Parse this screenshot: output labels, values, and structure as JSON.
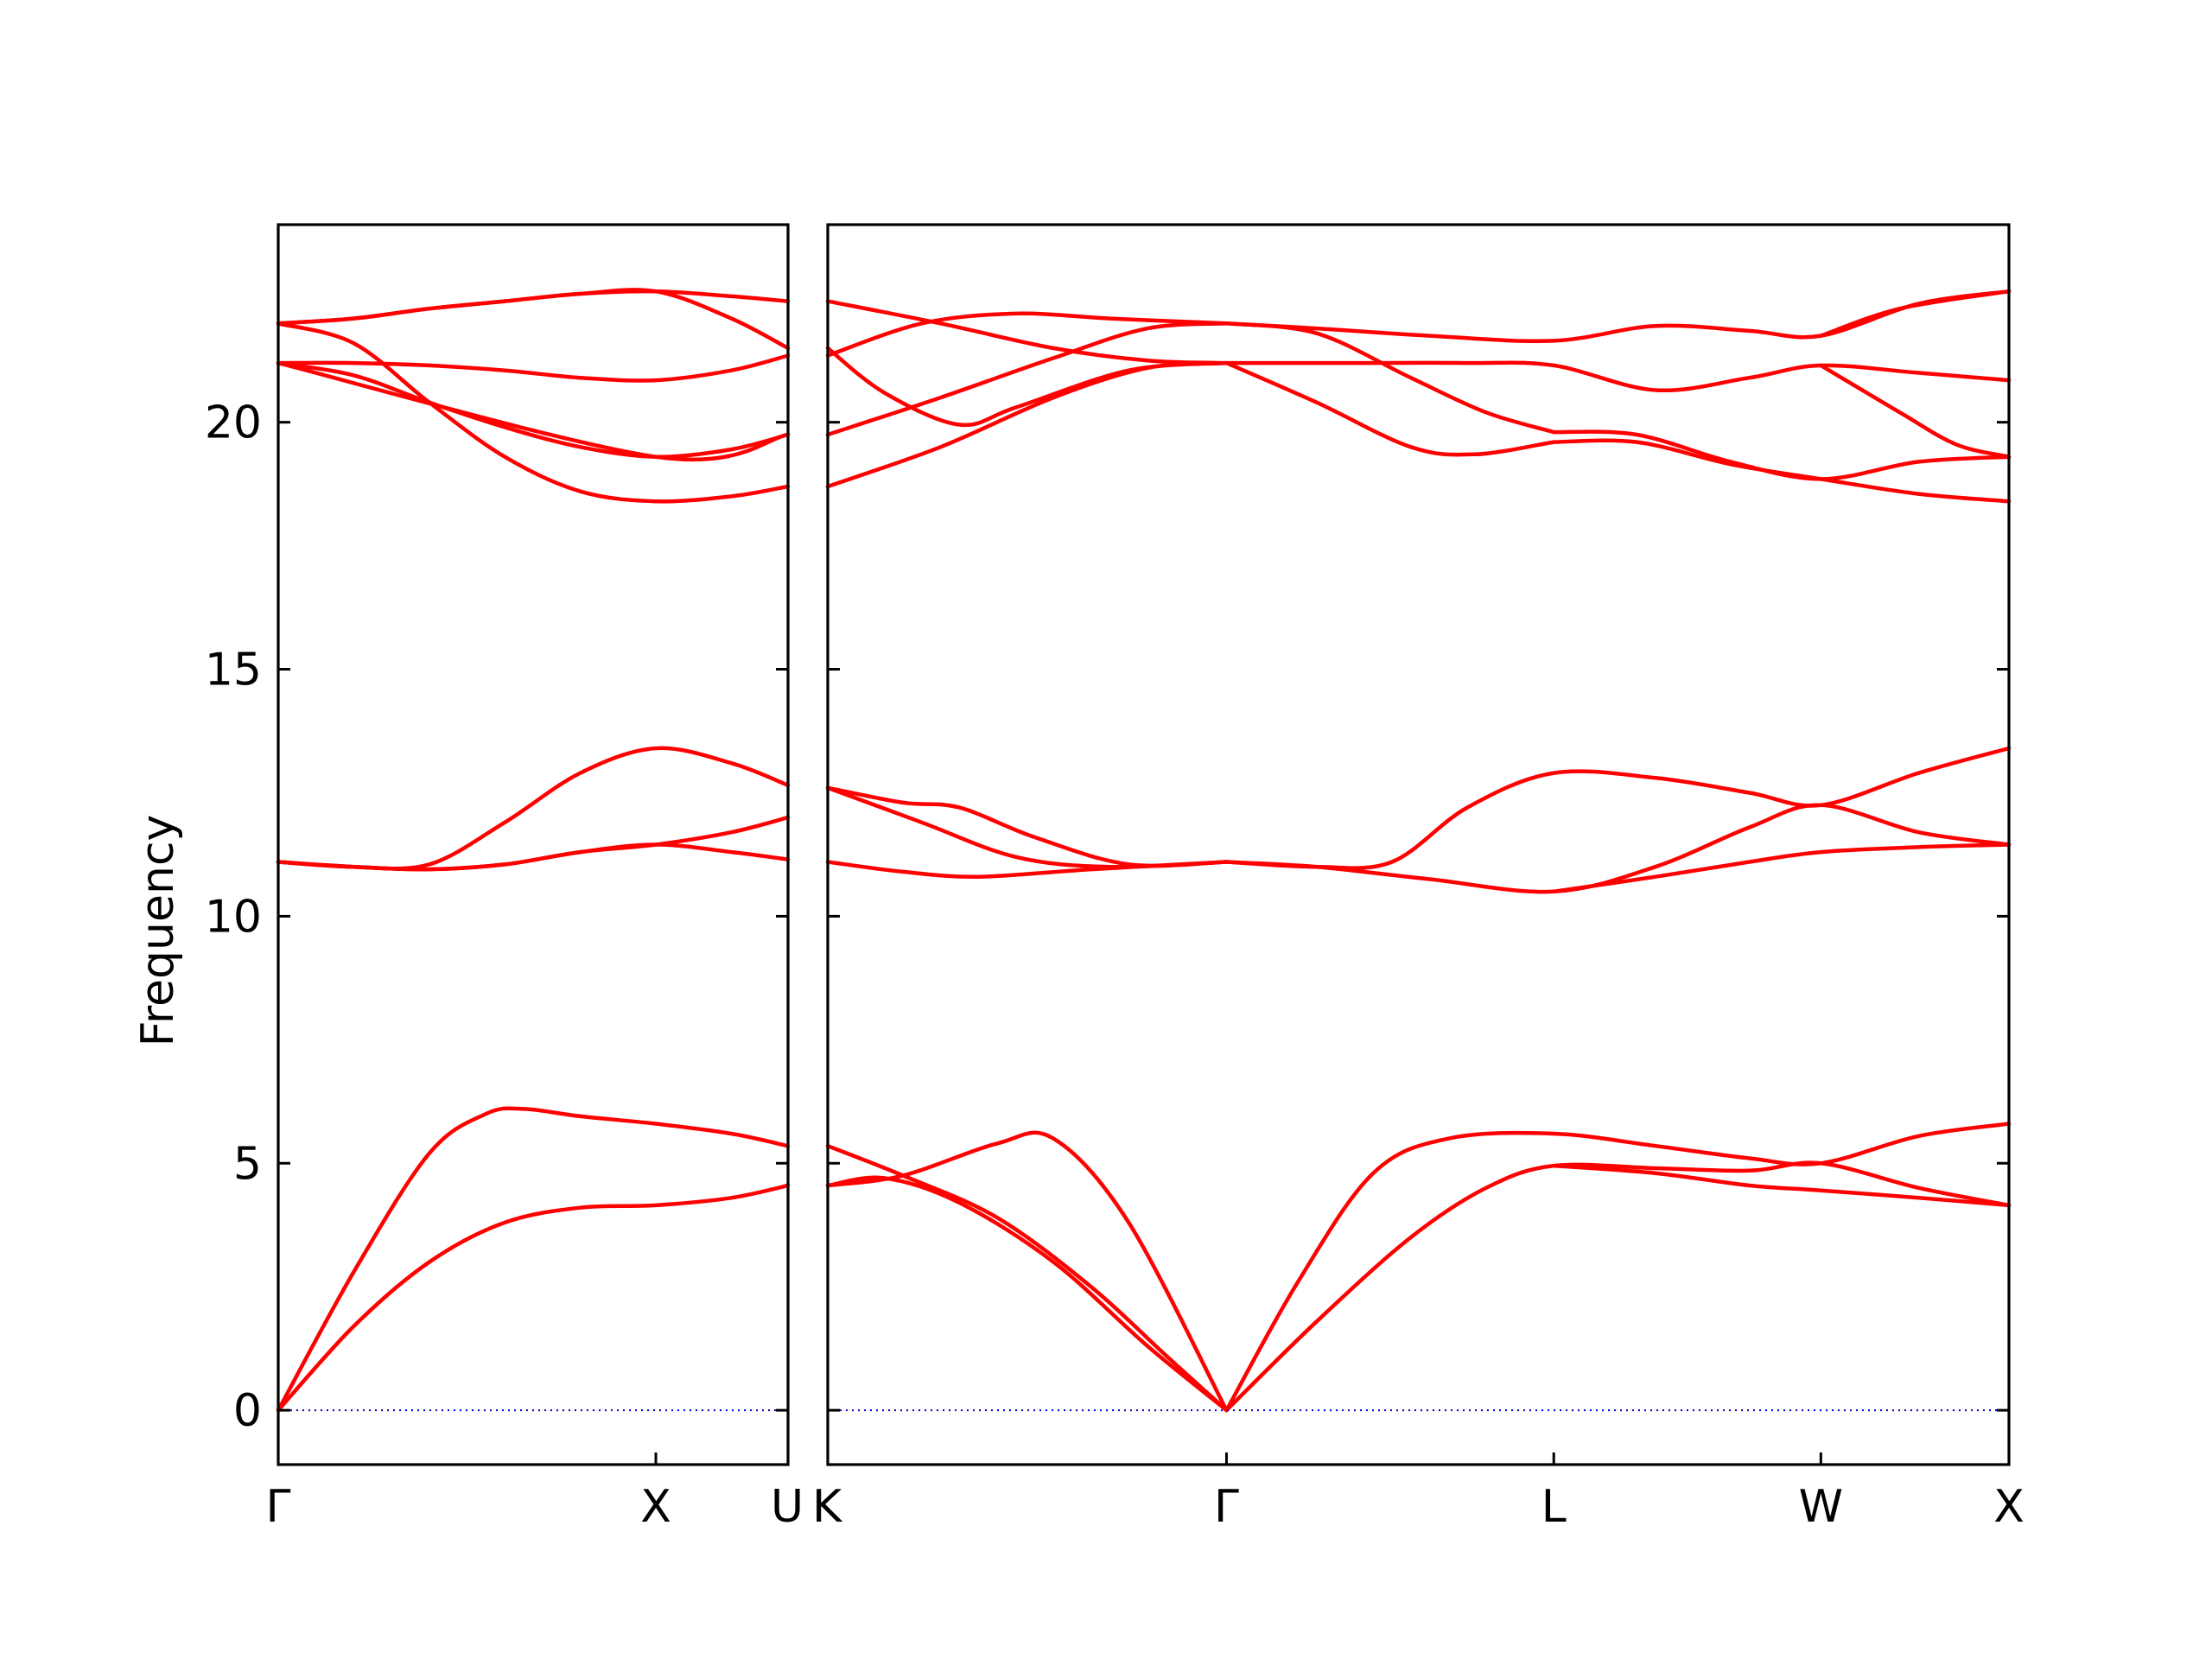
{
  "chart_data": {
    "type": "line",
    "title": "",
    "ylabel": "Frequency",
    "ylim": [
      -1.1,
      24
    ],
    "yticks": [
      0,
      5,
      10,
      15,
      20
    ],
    "grid": false,
    "legend": "none",
    "band_color": "#ff0000",
    "zero_line_color": "#0000cc",
    "panels": [
      {
        "name": "Γ-X-U",
        "xlim": [
          0,
          1.35
        ],
        "xtick_positions": [
          0,
          1.0,
          1.35
        ],
        "xtick_labels": [
          "Γ",
          "X",
          "U"
        ],
        "series": [
          {
            "x": [
              0,
              0.2,
              0.4,
              0.55,
              0.65,
              0.8,
              1.0,
              1.2,
              1.35
            ],
            "y": [
              0,
              2.8,
              5.2,
              6.0,
              6.1,
              5.95,
              5.8,
              5.6,
              5.35
            ]
          },
          {
            "x": [
              0,
              0.2,
              0.4,
              0.6,
              0.8,
              1.0,
              1.2,
              1.35
            ],
            "y": [
              0,
              1.7,
              3.0,
              3.8,
              4.1,
              4.15,
              4.3,
              4.55
            ]
          },
          {
            "x": [
              0,
              0.2,
              0.4,
              0.6,
              0.8,
              1.0,
              1.2,
              1.35
            ],
            "y": [
              11.1,
              11.0,
              11.05,
              11.9,
              12.9,
              13.4,
              13.1,
              12.65
            ]
          },
          {
            "x": [
              0,
              0.2,
              0.4,
              0.6,
              0.8,
              1.0,
              1.2,
              1.35
            ],
            "y": [
              11.1,
              11.0,
              10.95,
              11.05,
              11.3,
              11.45,
              11.3,
              11.15
            ]
          },
          {
            "x": [
              0,
              0.2,
              0.4,
              0.6,
              0.8,
              1.0,
              1.2,
              1.35
            ],
            "y": [
              11.1,
              11.0,
              10.95,
              11.05,
              11.3,
              11.45,
              11.7,
              12.0
            ]
          },
          {
            "x": [
              0,
              0.2,
              0.4,
              0.6,
              0.8,
              1.0,
              1.2,
              1.35
            ],
            "y": [
              21.2,
              21.2,
              21.15,
              21.05,
              20.9,
              20.85,
              21.05,
              21.35
            ]
          },
          {
            "x": [
              0,
              0.2,
              0.4,
              0.6,
              0.8,
              1.0,
              1.2,
              1.35
            ],
            "y": [
              21.2,
              20.95,
              20.4,
              19.9,
              19.5,
              19.3,
              19.45,
              19.75
            ]
          },
          {
            "x": [
              0,
              0.2,
              0.4,
              0.6,
              0.8,
              1.0,
              1.2,
              1.35
            ],
            "y": [
              22.0,
              21.6,
              20.4,
              19.3,
              18.6,
              18.4,
              18.5,
              18.7
            ]
          },
          {
            "x": [
              0,
              0.2,
              0.4,
              0.6,
              0.8,
              1.0,
              1.2,
              1.35
            ],
            "y": [
              22.0,
              22.1,
              22.3,
              22.45,
              22.6,
              22.65,
              22.55,
              22.45
            ]
          },
          {
            "x": [
              0,
              0.2,
              0.4,
              0.6,
              0.8,
              1.0,
              1.2,
              1.35
            ],
            "y": [
              22.0,
              22.1,
              22.3,
              22.45,
              22.6,
              22.65,
              22.1,
              21.5
            ]
          },
          {
            "x": [
              0,
              1.0,
              1.35
            ],
            "y": [
              21.2,
              19.3,
              19.75
            ]
          }
        ]
      },
      {
        "name": "K-Γ-L-W-X",
        "xlim": [
          0,
          3.14
        ],
        "xtick_positions": [
          0,
          1.06,
          1.93,
          2.64,
          3.14
        ],
        "xtick_labels": [
          "K",
          "Γ",
          "L",
          "W",
          "X"
        ],
        "series": [
          {
            "x": [
              0,
              0.2,
              0.45,
              0.6,
              0.8,
              1.06
            ],
            "y": [
              4.55,
              4.75,
              5.4,
              5.5,
              3.8,
              0
            ]
          },
          {
            "x": [
              0,
              0.2,
              0.45,
              0.7,
              0.9,
              1.06
            ],
            "y": [
              5.35,
              4.75,
              3.9,
              2.5,
              1.1,
              0
            ]
          },
          {
            "x": [
              0,
              0.15,
              0.35,
              0.6,
              0.85,
              1.06
            ],
            "y": [
              4.55,
              4.7,
              4.2,
              3.0,
              1.3,
              0
            ]
          },
          {
            "x": [
              1.06,
              1.25,
              1.45,
              1.65,
              1.93,
              2.2,
              2.45,
              2.64,
              2.9,
              3.14
            ],
            "y": [
              0,
              2.6,
              4.8,
              5.5,
              5.6,
              5.35,
              5.1,
              5.0,
              5.55,
              5.8
            ]
          },
          {
            "x": [
              1.06,
              1.3,
              1.55,
              1.75,
              1.93,
              2.2,
              2.45,
              2.64,
              2.9,
              3.14
            ],
            "y": [
              0,
              1.8,
              3.5,
              4.5,
              4.95,
              4.9,
              4.85,
              5.0,
              4.5,
              4.15
            ]
          },
          {
            "x": [
              1.93,
              2.2,
              2.45,
              2.64,
              2.9,
              3.14
            ],
            "y": [
              4.95,
              4.8,
              4.55,
              4.45,
              4.3,
              4.15
            ]
          },
          {
            "x": [
              0,
              0.2,
              0.35,
              0.55,
              0.8,
              1.06
            ],
            "y": [
              12.6,
              12.3,
              12.2,
              11.6,
              11.05,
              11.1
            ]
          },
          {
            "x": [
              0,
              0.25,
              0.5,
              0.75,
              1.06
            ],
            "y": [
              12.6,
              11.9,
              11.2,
              11.0,
              11.1
            ]
          },
          {
            "x": [
              0,
              0.2,
              0.4,
              0.7,
              1.06
            ],
            "y": [
              11.1,
              10.9,
              10.8,
              10.95,
              11.1
            ]
          },
          {
            "x": [
              1.06,
              1.3,
              1.5,
              1.7,
              1.93,
              2.2,
              2.45,
              2.64,
              2.9,
              3.14
            ],
            "y": [
              11.1,
              11.0,
              11.1,
              12.2,
              12.9,
              12.8,
              12.5,
              12.25,
              12.9,
              13.4
            ]
          },
          {
            "x": [
              1.06,
              1.3,
              1.6,
              1.93,
              2.2,
              2.45,
              2.64,
              2.9,
              3.14
            ],
            "y": [
              11.1,
              11.0,
              10.75,
              10.5,
              11.0,
              11.8,
              12.25,
              11.7,
              11.45
            ]
          },
          {
            "x": [
              1.93,
              2.2,
              2.45,
              2.64,
              2.9,
              3.14
            ],
            "y": [
              10.5,
              10.8,
              11.1,
              11.3,
              11.4,
              11.45
            ]
          },
          {
            "x": [
              0,
              0.3,
              0.6,
              0.85,
              1.06
            ],
            "y": [
              18.7,
              19.5,
              20.5,
              21.1,
              21.2
            ]
          },
          {
            "x": [
              0,
              0.3,
              0.6,
              0.85,
              1.06
            ],
            "y": [
              19.75,
              20.5,
              21.3,
              21.9,
              22.0
            ]
          },
          {
            "x": [
              0,
              0.15,
              0.35,
              0.5,
              0.8,
              1.06
            ],
            "y": [
              21.5,
              20.6,
              19.95,
              20.3,
              21.05,
              21.2
            ]
          },
          {
            "x": [
              0,
              0.25,
              0.5,
              0.75,
              1.06
            ],
            "y": [
              21.35,
              22.0,
              22.2,
              22.1,
              22.0
            ]
          },
          {
            "x": [
              0,
              0.3,
              0.6,
              0.85,
              1.06
            ],
            "y": [
              22.45,
              22.0,
              21.5,
              21.25,
              21.2
            ]
          },
          {
            "x": [
              1.06,
              1.3,
              1.6,
              1.93,
              2.2,
              2.45,
              2.64,
              2.9,
              3.14
            ],
            "y": [
              22.0,
              21.9,
              21.75,
              21.65,
              21.95,
              21.85,
              21.75,
              22.4,
              22.65
            ]
          },
          {
            "x": [
              1.06,
              1.4,
              1.7,
              1.93,
              2.2,
              2.45,
              2.64,
              2.9,
              3.14
            ],
            "y": [
              21.2,
              21.2,
              21.2,
              21.15,
              20.65,
              20.9,
              21.15,
              21.0,
              20.85
            ]
          },
          {
            "x": [
              1.06,
              1.3,
              1.55,
              1.72,
              1.93
            ],
            "y": [
              21.2,
              20.4,
              19.5,
              19.35,
              19.6
            ]
          },
          {
            "x": [
              1.06,
              1.3,
              1.55,
              1.75,
              1.93
            ],
            "y": [
              22.0,
              21.8,
              20.9,
              20.2,
              19.8
            ]
          },
          {
            "x": [
              1.93,
              2.15,
              2.4,
              2.64,
              2.9,
              3.14
            ],
            "y": [
              19.8,
              19.75,
              19.2,
              18.85,
              19.2,
              19.3
            ]
          },
          {
            "x": [
              1.93,
              2.15,
              2.4,
              2.64,
              2.9,
              3.14
            ],
            "y": [
              19.6,
              19.6,
              19.15,
              18.85,
              18.55,
              18.4
            ]
          },
          {
            "x": [
              2.64,
              2.85,
              3.14
            ],
            "y": [
              21.75,
              22.3,
              22.65
            ]
          },
          {
            "x": [
              2.64,
              2.85,
              3.0,
              3.14
            ],
            "y": [
              21.15,
              20.2,
              19.55,
              19.3
            ]
          }
        ]
      }
    ]
  }
}
